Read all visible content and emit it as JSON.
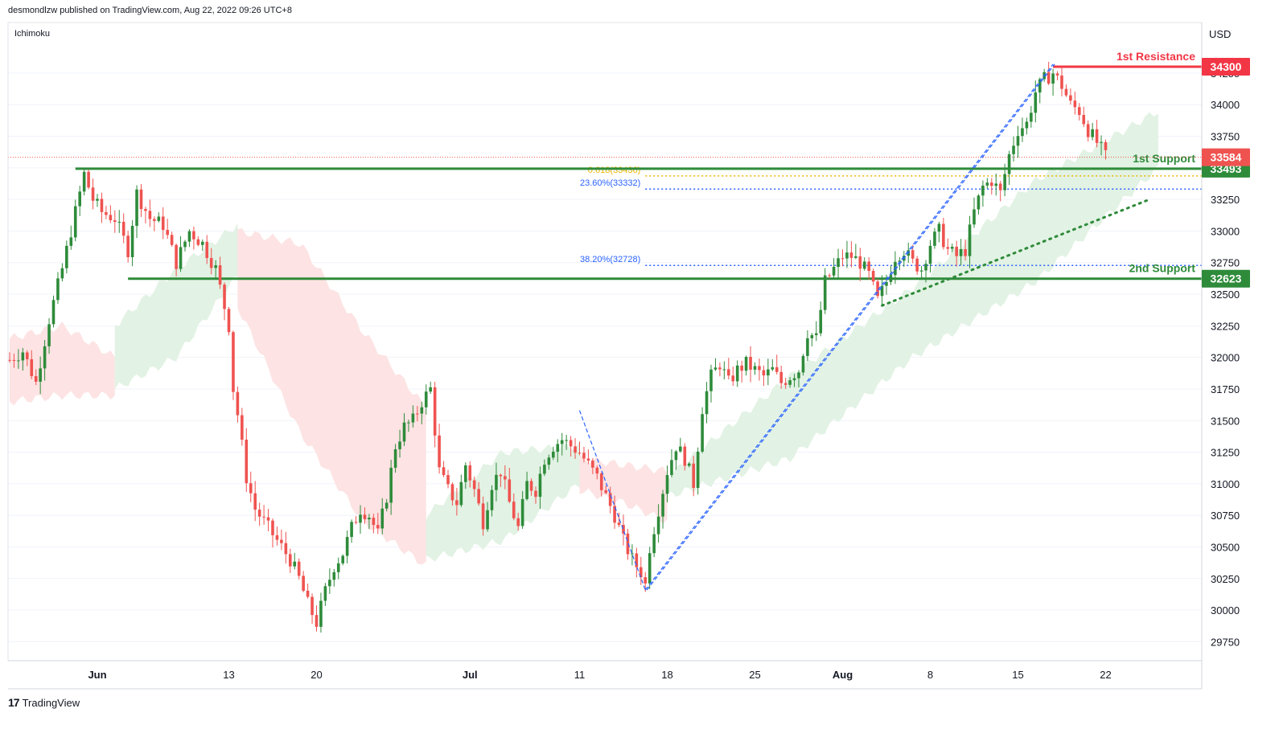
{
  "header": {
    "publisher": "desmondlzw published on TradingView.com, Aug 22, 2022 09:26 UTC+8"
  },
  "indicator": "Ichimoku",
  "footer": {
    "brand": "TradingView",
    "logo_glyph": "17"
  },
  "colors": {
    "up": "#26a69a",
    "up_body": "#2e8b3a",
    "down": "#ef5350",
    "support": "#2e8b3a",
    "resistance": "#f23645",
    "cloud_bull": "#e2f2e4",
    "cloud_bear": "#fde3e3",
    "fib_blue": "#2962ff",
    "fib_gold": "#f0b400",
    "grid": "#e0e3eb"
  },
  "chart_data": {
    "type": "candlestick",
    "currency": "USD",
    "ylim": [
      29600,
      34650
    ],
    "y_ticks": [
      29750,
      30000,
      30250,
      30500,
      30750,
      31000,
      31250,
      31500,
      31750,
      32000,
      32250,
      32500,
      32750,
      33000,
      33250,
      33500,
      33750,
      34000,
      34250
    ],
    "y_tick_labels": [
      "29750",
      "30000",
      "30250",
      "30500",
      "30750",
      "31000",
      "31250",
      "31500",
      "31750",
      "32000",
      "32250",
      "32500",
      "32750",
      "33000",
      "33250",
      "33500",
      "33750",
      "34000",
      "34250"
    ],
    "x_labels": [
      "Jun",
      "13",
      "20",
      "Jul",
      "11",
      "18",
      "25",
      "Aug",
      "8",
      "15",
      "22"
    ],
    "x_label_index": [
      20,
      50,
      70,
      105,
      130,
      150,
      170,
      190,
      210,
      230,
      250
    ],
    "x_bold": [
      "Jun",
      "Jul",
      "Aug"
    ],
    "levels": [
      {
        "name": "1st Resistance",
        "value": 34300,
        "tag": "34300",
        "kind": "resistance"
      },
      {
        "name": "1st Support",
        "value": 33493,
        "tag": "33493",
        "kind": "support"
      },
      {
        "name": "2nd Support",
        "value": 32623,
        "tag": "32623",
        "kind": "support"
      }
    ],
    "last_price": {
      "value": 33584,
      "tag": "33584"
    },
    "fib": [
      {
        "label": "0.618(33436)",
        "value": 33436,
        "color": "gold"
      },
      {
        "label": "23.60%(33332)",
        "value": 33332,
        "color": "blue"
      },
      {
        "label": "38.20%(32728)",
        "value": 32728,
        "color": "blue"
      }
    ],
    "swing_points": [
      {
        "x_index": 130,
        "y": 31580
      },
      {
        "x_index": 145,
        "y": 30160
      },
      {
        "x_index": 238,
        "y": 34320
      }
    ],
    "trendline": [
      {
        "x_index": 199,
        "y": 32410
      },
      {
        "x_index": 260,
        "y": 33250
      }
    ],
    "support_1_range": [
      15,
      260
    ],
    "support_2_range": [
      27,
      260
    ],
    "resistance_range": [
      238,
      260
    ],
    "close_path": [
      [
        0,
        31980
      ],
      [
        3,
        32050
      ],
      [
        6,
        31800
      ],
      [
        9,
        32300
      ],
      [
        12,
        32700
      ],
      [
        15,
        33150
      ],
      [
        17,
        33450
      ],
      [
        19,
        33250
      ],
      [
        21,
        33150
      ],
      [
        24,
        33100
      ],
      [
        27,
        32850
      ],
      [
        29,
        33300
      ],
      [
        32,
        33100
      ],
      [
        35,
        33050
      ],
      [
        38,
        32750
      ],
      [
        41,
        33000
      ],
      [
        44,
        32900
      ],
      [
        47,
        32700
      ],
      [
        49,
        32400
      ],
      [
        50,
        32250
      ],
      [
        51,
        31750
      ],
      [
        52,
        31550
      ],
      [
        53,
        31300
      ],
      [
        54,
        31050
      ],
      [
        56,
        30800
      ],
      [
        58,
        30700
      ],
      [
        60,
        30600
      ],
      [
        62,
        30500
      ],
      [
        64,
        30400
      ],
      [
        66,
        30250
      ],
      [
        68,
        30050
      ],
      [
        70,
        29900
      ],
      [
        72,
        30150
      ],
      [
        74,
        30350
      ],
      [
        76,
        30450
      ],
      [
        78,
        30650
      ],
      [
        80,
        30800
      ],
      [
        82,
        30750
      ],
      [
        84,
        30600
      ],
      [
        86,
        30900
      ],
      [
        88,
        31300
      ],
      [
        90,
        31450
      ],
      [
        92,
        31500
      ],
      [
        94,
        31650
      ],
      [
        96,
        31750
      ],
      [
        98,
        31100
      ],
      [
        100,
        30950
      ],
      [
        102,
        30850
      ],
      [
        104,
        31150
      ],
      [
        106,
        30950
      ],
      [
        108,
        30700
      ],
      [
        110,
        31000
      ],
      [
        112,
        31100
      ],
      [
        114,
        30850
      ],
      [
        116,
        30650
      ],
      [
        118,
        31000
      ],
      [
        120,
        30950
      ],
      [
        122,
        31200
      ],
      [
        124,
        31300
      ],
      [
        126,
        31350
      ],
      [
        128,
        31300
      ],
      [
        130,
        31250
      ],
      [
        132,
        31150
      ],
      [
        134,
        31050
      ],
      [
        136,
        30900
      ],
      [
        138,
        30750
      ],
      [
        140,
        30550
      ],
      [
        142,
        30400
      ],
      [
        144,
        30300
      ],
      [
        145,
        30200
      ],
      [
        146,
        30500
      ],
      [
        148,
        30800
      ],
      [
        150,
        31100
      ],
      [
        152,
        31300
      ],
      [
        154,
        31200
      ],
      [
        156,
        31000
      ],
      [
        158,
        31600
      ],
      [
        160,
        31850
      ],
      [
        162,
        31950
      ],
      [
        164,
        31800
      ],
      [
        166,
        31900
      ],
      [
        168,
        31950
      ],
      [
        170,
        31900
      ],
      [
        172,
        31850
      ],
      [
        174,
        31900
      ],
      [
        176,
        31800
      ],
      [
        178,
        31850
      ],
      [
        180,
        31900
      ],
      [
        182,
        32200
      ],
      [
        184,
        32150
      ],
      [
        186,
        32600
      ],
      [
        188,
        32700
      ],
      [
        190,
        32800
      ],
      [
        192,
        32800
      ],
      [
        194,
        32750
      ],
      [
        196,
        32650
      ],
      [
        198,
        32450
      ],
      [
        200,
        32600
      ],
      [
        202,
        32800
      ],
      [
        204,
        32850
      ],
      [
        206,
        32750
      ],
      [
        208,
        32700
      ],
      [
        210,
        32900
      ],
      [
        212,
        33000
      ],
      [
        214,
        32850
      ],
      [
        216,
        32800
      ],
      [
        218,
        32850
      ],
      [
        220,
        33150
      ],
      [
        222,
        33350
      ],
      [
        224,
        33400
      ],
      [
        226,
        33300
      ],
      [
        228,
        33600
      ],
      [
        230,
        33800
      ],
      [
        232,
        33850
      ],
      [
        234,
        34100
      ],
      [
        236,
        34200
      ],
      [
        238,
        34250
      ],
      [
        240,
        34150
      ],
      [
        242,
        34000
      ],
      [
        244,
        33950
      ],
      [
        246,
        33800
      ],
      [
        248,
        33700
      ],
      [
        250,
        33590
      ]
    ],
    "cloud_segments": [
      {
        "kind": "bear",
        "from": 0,
        "to": 24,
        "upper": [
          32150,
          32250,
          32000
        ],
        "lower": [
          31650,
          31700,
          31700
        ]
      },
      {
        "kind": "bull",
        "from": 24,
        "to": 52,
        "upper": [
          32250,
          32700,
          33050
        ],
        "lower": [
          31750,
          32000,
          32650
        ]
      },
      {
        "kind": "bear",
        "from": 52,
        "to": 95,
        "upper": [
          33000,
          32900,
          32200,
          31600
        ],
        "lower": [
          32400,
          31400,
          30700,
          30350
        ]
      },
      {
        "kind": "bull",
        "from": 95,
        "to": 130,
        "upper": [
          30750,
          31250,
          31300
        ],
        "lower": [
          30400,
          30550,
          31000
        ]
      },
      {
        "kind": "bear",
        "from": 130,
        "to": 150,
        "upper": [
          31200,
          31150,
          31100
        ],
        "lower": [
          30950,
          30850,
          30700
        ]
      },
      {
        "kind": "bull",
        "from": 150,
        "to": 262,
        "upper": [
          31050,
          31850,
          32550,
          33400,
          33950
        ],
        "lower": [
          30900,
          31200,
          32000,
          32600,
          33500
        ]
      }
    ]
  }
}
